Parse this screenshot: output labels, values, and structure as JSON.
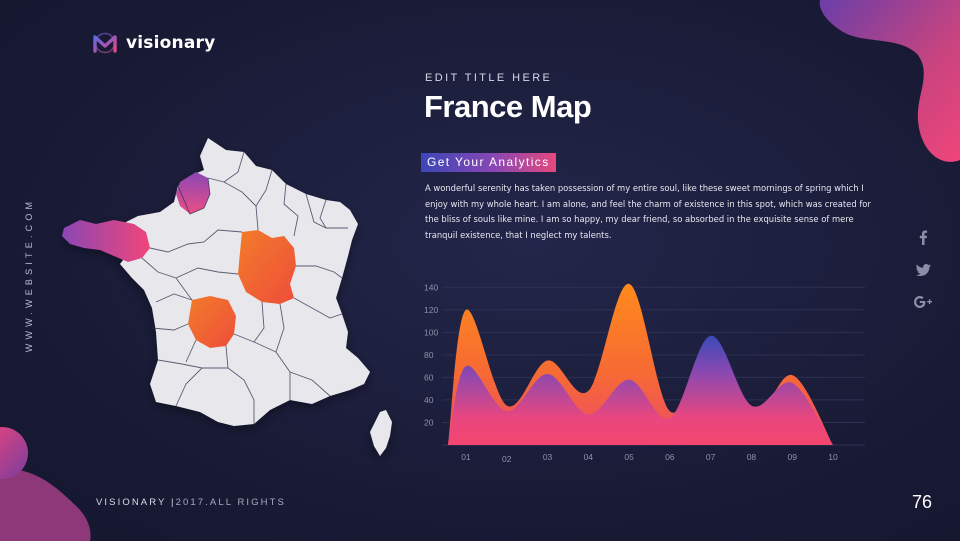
{
  "brand": {
    "name": "visionary",
    "logo_icon": "visionary-m-logo-icon"
  },
  "side_url": "WWW.WEBSITE.COM",
  "slide": {
    "eyebrow": "EDIT TITLE HERE",
    "title": "France Map",
    "badge": "Get Your Analytics",
    "body": "A wonderful serenity has taken possession of my entire soul, like these sweet mornings of spring which I enjoy with my whole heart. I am alone, and feel the charm of existence in this spot, which was created for the bliss of souls like mine. I am so happy, my dear friend, so absorbed in the exquisite sense of mere tranquil existence, that I neglect my talents."
  },
  "social": {
    "icons": [
      "facebook-icon",
      "twitter-icon",
      "google-plus-icon"
    ]
  },
  "footer": {
    "brand": "VISIONARY |",
    "rights": "2017.ALL RIGHTS"
  },
  "page_number": "76",
  "colors": {
    "background": "#1a1c38",
    "gradient_pink": "#f0457a",
    "gradient_purple": "#7d4bb5",
    "gradient_orange": "#f57a1e",
    "gradient_blue": "#3a4ab5",
    "map_land": "#e9e9ec"
  },
  "chart_data": {
    "type": "area",
    "categories": [
      "01",
      "02",
      "03",
      "04",
      "05",
      "06",
      "07",
      "08",
      "09",
      "10"
    ],
    "y_ticks": [
      "20",
      "40",
      "60",
      "80",
      "100",
      "120",
      "140"
    ],
    "ylim": [
      0,
      150
    ],
    "grid": true,
    "series": [
      {
        "values": [
          120,
          35,
          75,
          48,
          143,
          30,
          78,
          22,
          62,
          0
        ]
      },
      {
        "values": [
          70,
          30,
          63,
          27,
          58,
          24,
          97,
          35,
          55,
          0
        ]
      }
    ]
  }
}
